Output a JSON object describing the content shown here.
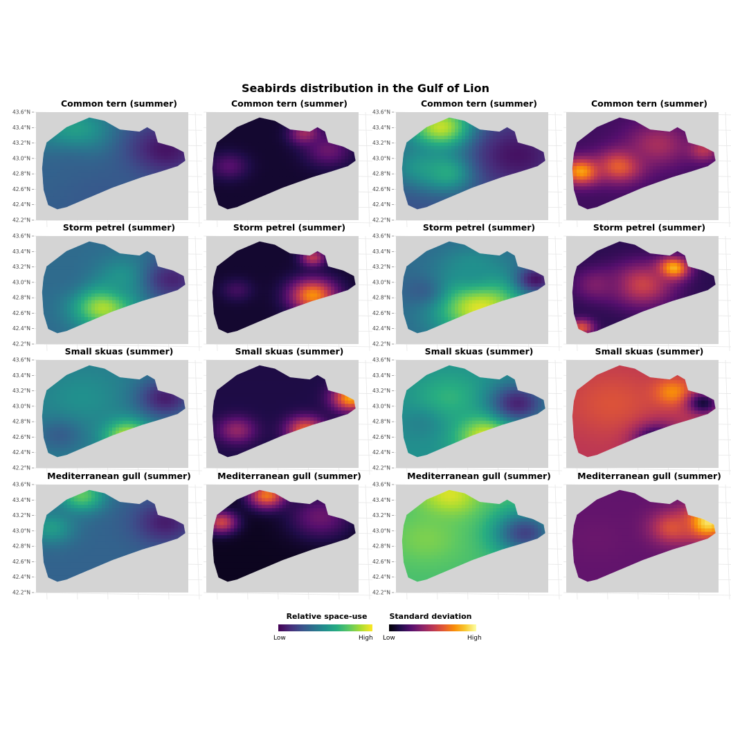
{
  "title": "Seabirds distribution in the Gulf of Lion",
  "y_ticks": [
    "43.6°N",
    "43.4°N",
    "43.2°N",
    "43.0°N",
    "42.8°N",
    "42.6°N",
    "42.4°N",
    "42.2°N"
  ],
  "rows": [
    {
      "species": "Common tern (summer)"
    },
    {
      "species": "Storm petrel (summer)"
    },
    {
      "species": "Small skuas (summer)"
    },
    {
      "species": "Mediterranean gull (summer)"
    }
  ],
  "columns": [
    {
      "scale": "viridis",
      "show_y_axis": true
    },
    {
      "scale": "inferno",
      "show_y_axis": false
    },
    {
      "scale": "viridis",
      "show_y_axis": true
    },
    {
      "scale": "inferno",
      "show_y_axis": false
    }
  ],
  "legend": {
    "space_use": {
      "title": "Relative space-use",
      "low": "Low",
      "high": "High"
    },
    "sd": {
      "title": "Standard deviation",
      "low": "Low",
      "high": "High"
    }
  },
  "colors": {
    "land": "#d4d4d4",
    "grid": "#e6e6e6",
    "viridis": [
      "#440154",
      "#472c7a",
      "#3b518b",
      "#2c718e",
      "#21908d",
      "#27ad81",
      "#5cc863",
      "#aadc32",
      "#fde725"
    ],
    "inferno": [
      "#000004",
      "#1f0c48",
      "#550f6d",
      "#88226a",
      "#ba3655",
      "#e35933",
      "#f98e09",
      "#f8c931",
      "#fcffa4"
    ]
  },
  "chart_data": {
    "type": "heatmap",
    "value_range": [
      0,
      1
    ],
    "panels": [
      {
        "row": 0,
        "col": 0,
        "blobs": [
          {
            "x": 0.25,
            "y": 0.2,
            "v": 0.62,
            "r": 0.25
          },
          {
            "x": 0.2,
            "y": 0.55,
            "v": 0.32,
            "r": 0.3
          },
          {
            "x": 0.85,
            "y": 0.35,
            "v": 0.05,
            "r": 0.25
          },
          {
            "x": 0.45,
            "y": 0.8,
            "v": 0.28,
            "r": 0.3
          }
        ],
        "base": 0.3
      },
      {
        "row": 0,
        "col": 1,
        "blobs": [
          {
            "x": 0.65,
            "y": 0.2,
            "v": 0.45,
            "r": 0.1
          },
          {
            "x": 0.8,
            "y": 0.35,
            "v": 0.3,
            "r": 0.15
          },
          {
            "x": 0.15,
            "y": 0.5,
            "v": 0.25,
            "r": 0.12
          }
        ],
        "base": 0.08
      },
      {
        "row": 0,
        "col": 2,
        "blobs": [
          {
            "x": 0.3,
            "y": 0.15,
            "v": 0.95,
            "r": 0.22
          },
          {
            "x": 0.15,
            "y": 0.5,
            "v": 0.5,
            "r": 0.2
          },
          {
            "x": 0.35,
            "y": 0.55,
            "v": 0.65,
            "r": 0.18
          },
          {
            "x": 0.8,
            "y": 0.4,
            "v": 0.05,
            "r": 0.3
          }
        ],
        "base": 0.25
      },
      {
        "row": 0,
        "col": 3,
        "blobs": [
          {
            "x": 0.1,
            "y": 0.55,
            "v": 0.8,
            "r": 0.12
          },
          {
            "x": 0.35,
            "y": 0.5,
            "v": 0.65,
            "r": 0.15
          },
          {
            "x": 0.6,
            "y": 0.3,
            "v": 0.45,
            "r": 0.2
          },
          {
            "x": 0.9,
            "y": 0.35,
            "v": 0.5,
            "r": 0.1
          }
        ],
        "base": 0.2
      },
      {
        "row": 1,
        "col": 0,
        "blobs": [
          {
            "x": 0.45,
            "y": 0.65,
            "v": 0.92,
            "r": 0.2
          },
          {
            "x": 0.6,
            "y": 0.4,
            "v": 0.55,
            "r": 0.2
          },
          {
            "x": 0.15,
            "y": 0.35,
            "v": 0.35,
            "r": 0.2
          },
          {
            "x": 0.9,
            "y": 0.4,
            "v": 0.1,
            "r": 0.2
          }
        ],
        "base": 0.35
      },
      {
        "row": 1,
        "col": 1,
        "blobs": [
          {
            "x": 0.7,
            "y": 0.55,
            "v": 0.75,
            "r": 0.15
          },
          {
            "x": 0.7,
            "y": 0.2,
            "v": 0.5,
            "r": 0.08
          },
          {
            "x": 0.2,
            "y": 0.5,
            "v": 0.2,
            "r": 0.1
          }
        ],
        "base": 0.08
      },
      {
        "row": 1,
        "col": 2,
        "blobs": [
          {
            "x": 0.55,
            "y": 0.65,
            "v": 0.97,
            "r": 0.28
          },
          {
            "x": 0.5,
            "y": 0.3,
            "v": 0.5,
            "r": 0.2
          },
          {
            "x": 0.15,
            "y": 0.5,
            "v": 0.3,
            "r": 0.15
          },
          {
            "x": 0.92,
            "y": 0.4,
            "v": 0.05,
            "r": 0.12
          }
        ],
        "base": 0.35
      },
      {
        "row": 1,
        "col": 3,
        "blobs": [
          {
            "x": 0.7,
            "y": 0.3,
            "v": 0.9,
            "r": 0.1
          },
          {
            "x": 0.5,
            "y": 0.45,
            "v": 0.55,
            "r": 0.2
          },
          {
            "x": 0.2,
            "y": 0.45,
            "v": 0.35,
            "r": 0.15
          },
          {
            "x": 0.1,
            "y": 0.85,
            "v": 0.6,
            "r": 0.08
          }
        ],
        "base": 0.15
      },
      {
        "row": 2,
        "col": 0,
        "blobs": [
          {
            "x": 0.6,
            "y": 0.7,
            "v": 0.92,
            "r": 0.15
          },
          {
            "x": 0.3,
            "y": 0.35,
            "v": 0.5,
            "r": 0.25
          },
          {
            "x": 0.85,
            "y": 0.35,
            "v": 0.08,
            "r": 0.18
          },
          {
            "x": 0.15,
            "y": 0.7,
            "v": 0.3,
            "r": 0.15
          }
        ],
        "base": 0.42
      },
      {
        "row": 2,
        "col": 1,
        "blobs": [
          {
            "x": 0.95,
            "y": 0.35,
            "v": 0.8,
            "r": 0.12
          },
          {
            "x": 0.65,
            "y": 0.65,
            "v": 0.65,
            "r": 0.12
          },
          {
            "x": 0.2,
            "y": 0.65,
            "v": 0.4,
            "r": 0.12
          }
        ],
        "base": 0.12
      },
      {
        "row": 2,
        "col": 2,
        "blobs": [
          {
            "x": 0.6,
            "y": 0.7,
            "v": 0.97,
            "r": 0.2
          },
          {
            "x": 0.35,
            "y": 0.35,
            "v": 0.65,
            "r": 0.22
          },
          {
            "x": 0.8,
            "y": 0.4,
            "v": 0.1,
            "r": 0.18
          },
          {
            "x": 0.15,
            "y": 0.6,
            "v": 0.45,
            "r": 0.15
          }
        ],
        "base": 0.5
      },
      {
        "row": 2,
        "col": 3,
        "blobs": [
          {
            "x": 0.3,
            "y": 0.4,
            "v": 0.6,
            "r": 0.3
          },
          {
            "x": 0.7,
            "y": 0.3,
            "v": 0.75,
            "r": 0.12
          },
          {
            "x": 0.6,
            "y": 0.75,
            "v": 0.05,
            "r": 0.15
          },
          {
            "x": 0.9,
            "y": 0.4,
            "v": 0.1,
            "r": 0.1
          }
        ],
        "base": 0.5
      },
      {
        "row": 3,
        "col": 0,
        "blobs": [
          {
            "x": 0.3,
            "y": 0.1,
            "v": 0.75,
            "r": 0.15
          },
          {
            "x": 0.1,
            "y": 0.4,
            "v": 0.55,
            "r": 0.15
          },
          {
            "x": 0.85,
            "y": 0.35,
            "v": 0.08,
            "r": 0.2
          }
        ],
        "base": 0.32
      },
      {
        "row": 3,
        "col": 1,
        "blobs": [
          {
            "x": 0.4,
            "y": 0.1,
            "v": 0.7,
            "r": 0.12
          },
          {
            "x": 0.1,
            "y": 0.35,
            "v": 0.55,
            "r": 0.1
          },
          {
            "x": 0.75,
            "y": 0.3,
            "v": 0.3,
            "r": 0.2
          }
        ],
        "base": 0.05
      },
      {
        "row": 3,
        "col": 2,
        "blobs": [
          {
            "x": 0.35,
            "y": 0.1,
            "v": 0.95,
            "r": 0.2
          },
          {
            "x": 0.2,
            "y": 0.5,
            "v": 0.8,
            "r": 0.25
          },
          {
            "x": 0.85,
            "y": 0.45,
            "v": 0.2,
            "r": 0.2
          }
        ],
        "base": 0.7
      },
      {
        "row": 3,
        "col": 3,
        "blobs": [
          {
            "x": 0.92,
            "y": 0.35,
            "v": 0.97,
            "r": 0.15
          },
          {
            "x": 0.7,
            "y": 0.4,
            "v": 0.6,
            "r": 0.15
          },
          {
            "x": 0.2,
            "y": 0.5,
            "v": 0.3,
            "r": 0.2
          }
        ],
        "base": 0.28
      }
    ]
  }
}
